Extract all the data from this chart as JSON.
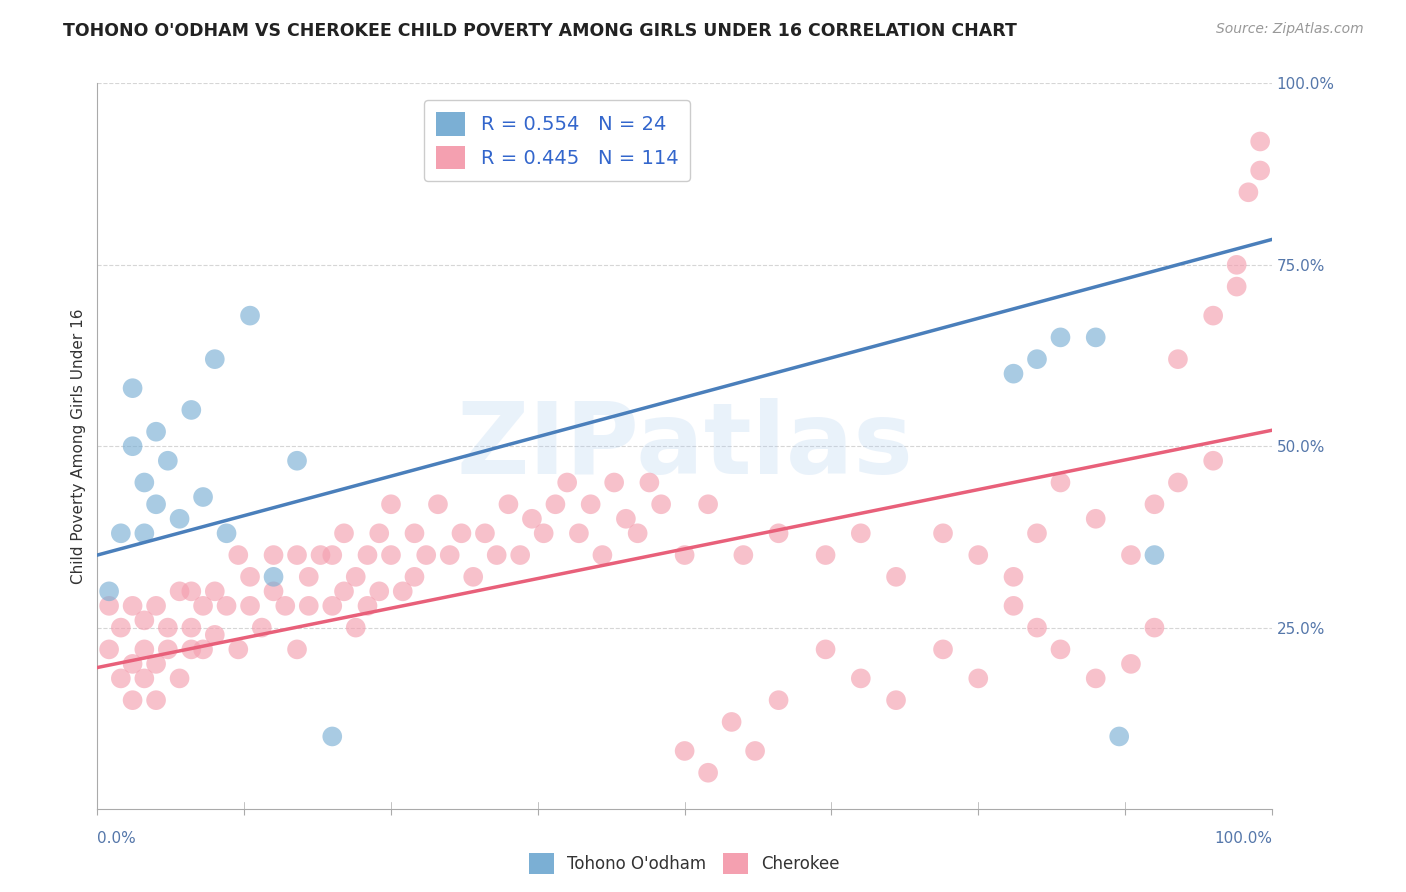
{
  "title": "TOHONO O'ODHAM VS CHEROKEE CHILD POVERTY AMONG GIRLS UNDER 16 CORRELATION CHART",
  "source": "Source: ZipAtlas.com",
  "ylabel": "Child Poverty Among Girls Under 16",
  "xlim": [
    0,
    1
  ],
  "ylim": [
    0,
    1
  ],
  "ytick_positions": [
    0.25,
    0.5,
    0.75,
    1.0
  ],
  "ytick_labels": [
    "25.0%",
    "50.0%",
    "75.0%",
    "100.0%"
  ],
  "tohono_color": "#7BAFD4",
  "cherokee_color": "#F4A0B0",
  "tohono_line_color": "#4A7FBB",
  "cherokee_line_color": "#E8607A",
  "tohono_R": 0.554,
  "tohono_N": 24,
  "cherokee_R": 0.445,
  "cherokee_N": 114,
  "legend_label_1": "R = 0.554   N = 24",
  "legend_label_2": "R = 0.445   N = 114",
  "watermark": "ZIPatlas",
  "background_color": "#FFFFFF",
  "grid_color": "#CCCCCC",
  "tohono_line_start_y": 0.35,
  "tohono_line_end_y": 0.785,
  "cherokee_line_start_y": 0.195,
  "cherokee_line_end_y": 0.522,
  "tohono_x": [
    0.01,
    0.02,
    0.03,
    0.03,
    0.04,
    0.04,
    0.05,
    0.05,
    0.06,
    0.07,
    0.08,
    0.09,
    0.1,
    0.11,
    0.13,
    0.15,
    0.17,
    0.2,
    0.78,
    0.8,
    0.82,
    0.85,
    0.87,
    0.9
  ],
  "tohono_y": [
    0.3,
    0.38,
    0.5,
    0.58,
    0.38,
    0.45,
    0.42,
    0.52,
    0.48,
    0.4,
    0.55,
    0.43,
    0.62,
    0.38,
    0.68,
    0.32,
    0.48,
    0.1,
    0.6,
    0.62,
    0.65,
    0.65,
    0.1,
    0.35
  ],
  "cherokee_x": [
    0.01,
    0.01,
    0.02,
    0.02,
    0.03,
    0.03,
    0.03,
    0.04,
    0.04,
    0.04,
    0.05,
    0.05,
    0.05,
    0.06,
    0.06,
    0.07,
    0.07,
    0.08,
    0.08,
    0.08,
    0.09,
    0.09,
    0.1,
    0.1,
    0.11,
    0.12,
    0.12,
    0.13,
    0.13,
    0.14,
    0.15,
    0.15,
    0.16,
    0.17,
    0.17,
    0.18,
    0.18,
    0.19,
    0.2,
    0.2,
    0.21,
    0.21,
    0.22,
    0.22,
    0.23,
    0.23,
    0.24,
    0.24,
    0.25,
    0.25,
    0.26,
    0.27,
    0.27,
    0.28,
    0.29,
    0.3,
    0.31,
    0.32,
    0.33,
    0.34,
    0.35,
    0.36,
    0.37,
    0.38,
    0.39,
    0.4,
    0.41,
    0.42,
    0.43,
    0.44,
    0.45,
    0.46,
    0.47,
    0.48,
    0.5,
    0.52,
    0.54,
    0.56,
    0.58,
    0.5,
    0.52,
    0.55,
    0.58,
    0.62,
    0.65,
    0.68,
    0.72,
    0.75,
    0.78,
    0.8,
    0.82,
    0.85,
    0.88,
    0.9,
    0.92,
    0.95,
    0.97,
    0.98,
    0.99,
    0.99,
    0.97,
    0.95,
    0.92,
    0.9,
    0.88,
    0.85,
    0.82,
    0.8,
    0.78,
    0.75,
    0.72,
    0.68,
    0.65,
    0.62
  ],
  "cherokee_y": [
    0.28,
    0.22,
    0.18,
    0.25,
    0.15,
    0.2,
    0.28,
    0.22,
    0.18,
    0.26,
    0.15,
    0.2,
    0.28,
    0.22,
    0.25,
    0.18,
    0.3,
    0.22,
    0.25,
    0.3,
    0.22,
    0.28,
    0.24,
    0.3,
    0.28,
    0.22,
    0.35,
    0.28,
    0.32,
    0.25,
    0.3,
    0.35,
    0.28,
    0.22,
    0.35,
    0.28,
    0.32,
    0.35,
    0.28,
    0.35,
    0.3,
    0.38,
    0.25,
    0.32,
    0.35,
    0.28,
    0.38,
    0.3,
    0.35,
    0.42,
    0.3,
    0.38,
    0.32,
    0.35,
    0.42,
    0.35,
    0.38,
    0.32,
    0.38,
    0.35,
    0.42,
    0.35,
    0.4,
    0.38,
    0.42,
    0.45,
    0.38,
    0.42,
    0.35,
    0.45,
    0.4,
    0.38,
    0.45,
    0.42,
    0.08,
    0.05,
    0.12,
    0.08,
    0.15,
    0.35,
    0.42,
    0.35,
    0.38,
    0.35,
    0.38,
    0.32,
    0.38,
    0.35,
    0.32,
    0.38,
    0.45,
    0.4,
    0.35,
    0.42,
    0.45,
    0.48,
    0.75,
    0.85,
    0.88,
    0.92,
    0.72,
    0.68,
    0.62,
    0.25,
    0.2,
    0.18,
    0.22,
    0.25,
    0.28,
    0.18,
    0.22,
    0.15,
    0.18,
    0.22
  ]
}
